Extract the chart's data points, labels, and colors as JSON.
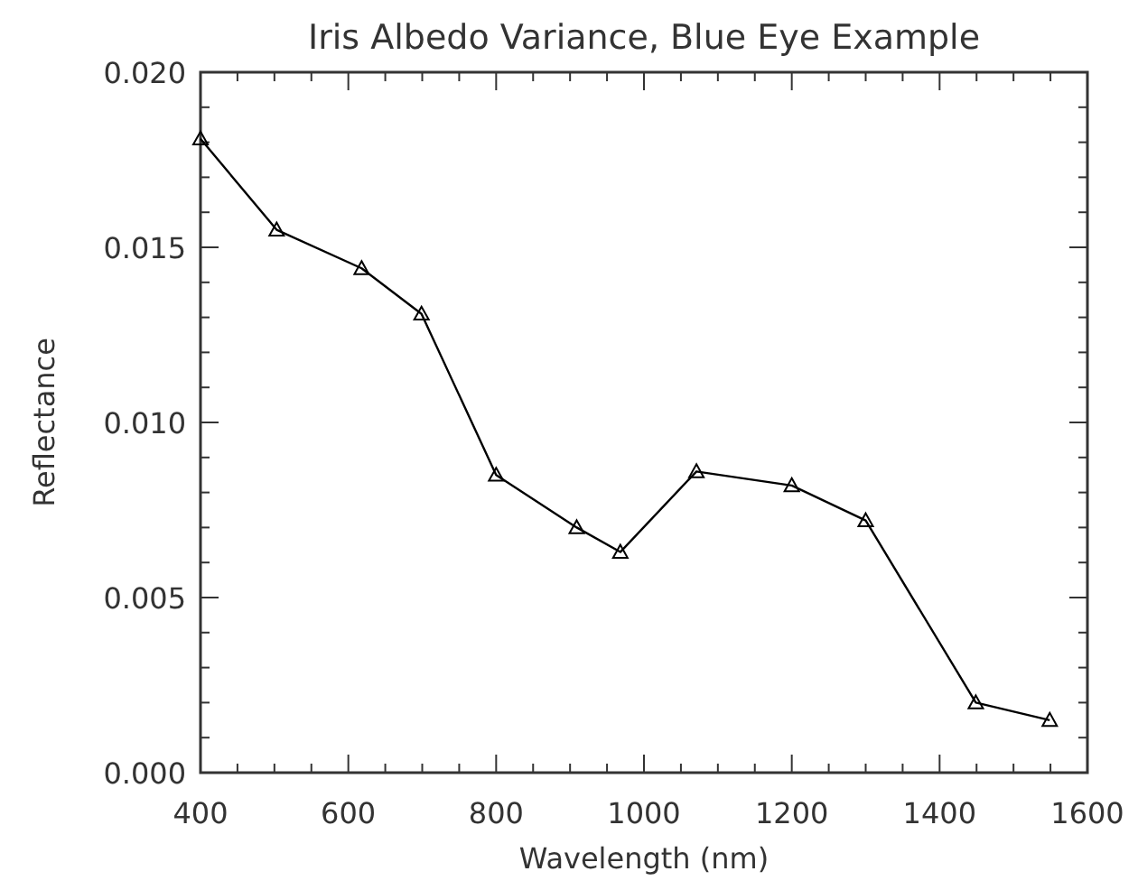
{
  "chart_data": {
    "type": "line",
    "title": "Iris Albedo Variance, Blue Eye Example",
    "xlabel": "Wavelength (nm)",
    "ylabel": "Reflectance",
    "x": [
      400,
      503,
      618,
      699,
      800,
      909,
      968,
      1071,
      1200,
      1300,
      1449,
      1549
    ],
    "series": [
      {
        "color": "#000000",
        "values": [
          0.0181,
          0.0155,
          0.0144,
          0.0131,
          0.0085,
          0.007,
          0.0063,
          0.0086,
          0.0082,
          0.0072,
          0.002,
          0.0015
        ]
      }
    ],
    "xlim": [
      400,
      1600
    ],
    "xticks": [
      400,
      {
        "value": 450,
        "label": null
      },
      {
        "value": 500,
        "label": null
      },
      {
        "value": 550,
        "label": null
      },
      600,
      {
        "value": 650,
        "label": null
      },
      {
        "value": 700,
        "label": null
      },
      {
        "value": 750,
        "label": null
      },
      800,
      {
        "value": 850,
        "label": null
      },
      {
        "value": 900,
        "label": null
      },
      {
        "value": 950,
        "label": null
      },
      1000,
      {
        "value": 1050,
        "label": null
      },
      {
        "value": 1100,
        "label": null
      },
      {
        "value": 1150,
        "label": null
      },
      1200,
      {
        "value": 1250,
        "label": null
      },
      {
        "value": 1300,
        "label": null
      },
      {
        "value": 1350,
        "label": null
      },
      1400,
      {
        "value": 1450,
        "label": null
      },
      {
        "value": 1500,
        "label": null
      },
      {
        "value": 1550,
        "label": null
      },
      1600
    ],
    "ylim": [
      0,
      0.02
    ],
    "yticks": [
      {
        "value": 0,
        "label": "0.000"
      },
      {
        "value": 0.001,
        "label": null
      },
      {
        "value": 0.002,
        "label": null
      },
      {
        "value": 0.003,
        "label": null
      },
      {
        "value": 0.004,
        "label": null
      },
      {
        "value": 0.005,
        "label": "0.005"
      },
      {
        "value": 0.006,
        "label": null
      },
      {
        "value": 0.007,
        "label": null
      },
      {
        "value": 0.008,
        "label": null
      },
      {
        "value": 0.009,
        "label": null
      },
      {
        "value": 0.01,
        "label": "0.010"
      },
      {
        "value": 0.011,
        "label": null
      },
      {
        "value": 0.012,
        "label": null
      },
      {
        "value": 0.013,
        "label": null
      },
      {
        "value": 0.014,
        "label": null
      },
      {
        "value": 0.015,
        "label": "0.015"
      },
      {
        "value": 0.016,
        "label": null
      },
      {
        "value": 0.017,
        "label": null
      },
      {
        "value": 0.018,
        "label": null
      },
      {
        "value": 0.019,
        "label": null
      },
      {
        "value": 0.02,
        "label": "0.020"
      }
    ],
    "marker": "triangle",
    "line_style": "solid"
  }
}
